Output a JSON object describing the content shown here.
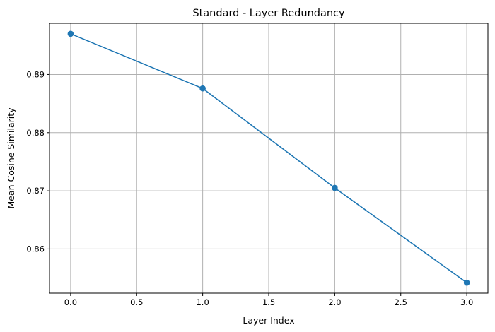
{
  "chart_data": {
    "type": "line",
    "title": "Standard - Layer Redundancy",
    "xlabel": "Layer Index",
    "ylabel": "Mean Cosine Similarity",
    "xlim": [
      -0.16,
      3.16
    ],
    "ylim": [
      0.8524,
      0.8988
    ],
    "xticks": [
      0.0,
      0.5,
      1.0,
      1.5,
      2.0,
      2.5,
      3.0
    ],
    "xtick_labels": [
      "0.0",
      "0.5",
      "1.0",
      "1.5",
      "2.0",
      "2.5",
      "3.0"
    ],
    "yticks": [
      0.86,
      0.87,
      0.88,
      0.89
    ],
    "ytick_labels": [
      "0.86",
      "0.87",
      "0.88",
      "0.89"
    ],
    "grid": true,
    "series": [
      {
        "x": [
          0,
          1,
          2,
          3
        ],
        "values": [
          0.897,
          0.8876,
          0.8705,
          0.8542
        ],
        "color": "#1f77b4",
        "marker": "circle"
      }
    ]
  }
}
